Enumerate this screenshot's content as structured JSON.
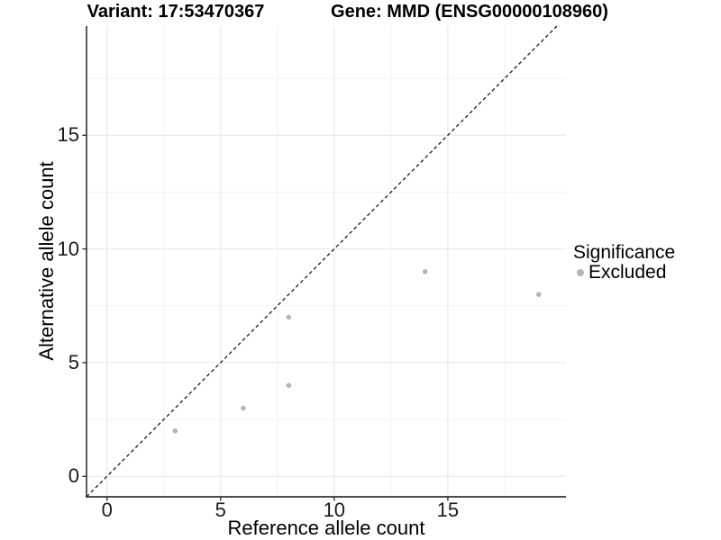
{
  "chart_data": {
    "type": "scatter",
    "title_left": "Variant: 17:53470367",
    "title_right": "Gene: MMD (ENSG00000108960)",
    "xlabel": "Reference allele count",
    "ylabel": "Alternative allele count",
    "xlim": [
      -0.9,
      20.2
    ],
    "ylim": [
      -0.9,
      19.8
    ],
    "x_ticks": [
      0,
      5,
      10,
      15
    ],
    "y_ticks": [
      0,
      5,
      10,
      15
    ],
    "x_minor_ticks": [
      2.5,
      7.5,
      12.5,
      17.5
    ],
    "y_minor_ticks": [
      2.5,
      7.5,
      12.5,
      17.5
    ],
    "grid": "major and minor gridlines on, white panel",
    "reference_line": {
      "kind": "identity y=x",
      "style": "dashed",
      "color": "#1a1a1a"
    },
    "series": [
      {
        "name": "Excluded",
        "color": "#b5b5b5",
        "points": [
          {
            "x": 3,
            "y": 2
          },
          {
            "x": 6,
            "y": 3
          },
          {
            "x": 8,
            "y": 4
          },
          {
            "x": 8,
            "y": 7
          },
          {
            "x": 14,
            "y": 9
          },
          {
            "x": 19,
            "y": 8
          }
        ]
      }
    ],
    "legend": {
      "title": "Significance",
      "position": "right",
      "items": [
        {
          "label": "Excluded",
          "color": "#b5b5b5"
        }
      ]
    },
    "colors": {
      "background": "#ffffff",
      "axis_line": "#333333",
      "tick_mark": "#333333",
      "grid_major": "#e5e5e5",
      "grid_minor": "#f2f2f2",
      "text": "#000000"
    }
  }
}
